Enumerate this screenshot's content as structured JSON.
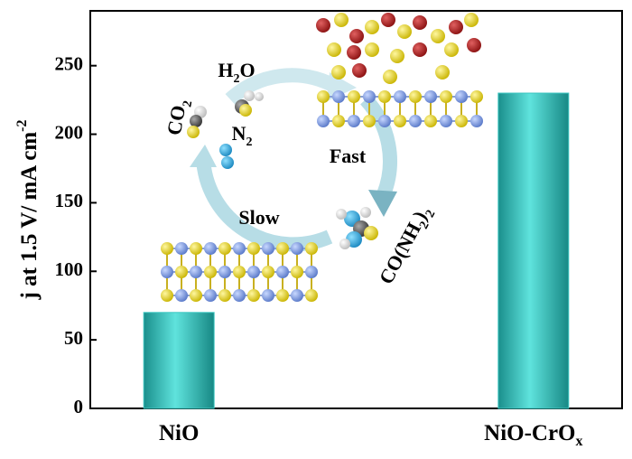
{
  "chart_data": {
    "type": "bar",
    "categories": [
      [
        "NiO"
      ],
      [
        "NiO-CrO",
        "x"
      ]
    ],
    "values": [
      70,
      230
    ],
    "color": "#3cc7c2",
    "y_label": [
      "j at 1.5 V/ mA cm",
      "-2"
    ],
    "ylim": [
      0,
      290
    ],
    "yticks": [
      0,
      50,
      100,
      150,
      200,
      250
    ],
    "annotations": [
      [
        "H",
        "2",
        "O"
      ],
      [
        "CO",
        "2"
      ],
      [
        "N",
        "2"
      ],
      [
        "Fast"
      ],
      [
        "Slow"
      ],
      [
        "CO(NH",
        "2",
        ")",
        "2"
      ]
    ]
  }
}
